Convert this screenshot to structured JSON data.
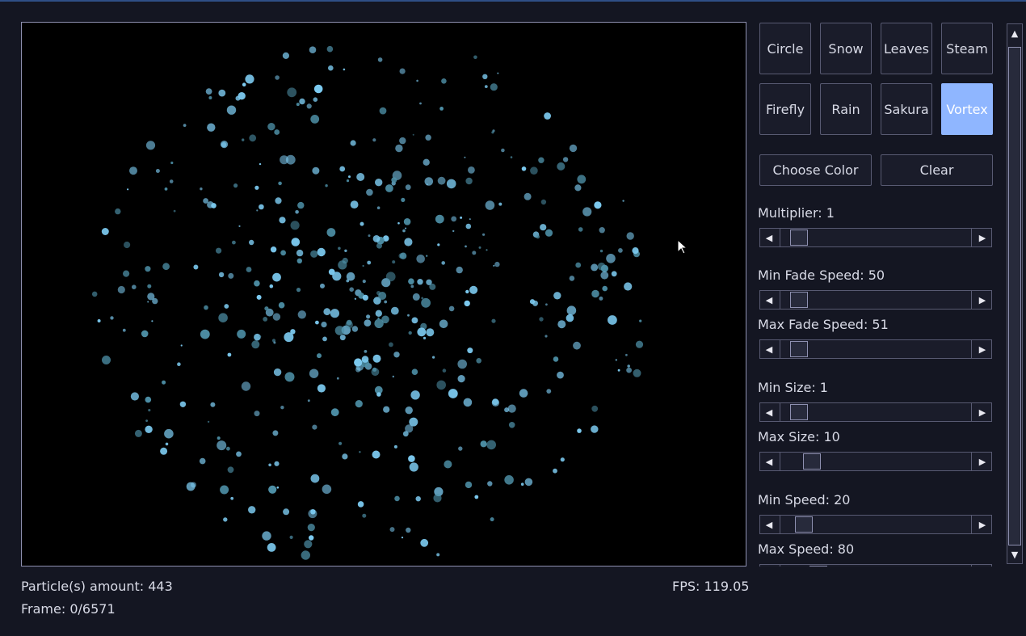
{
  "presets": [
    {
      "label": "Circle",
      "selected": false
    },
    {
      "label": "Snow",
      "selected": false
    },
    {
      "label": "Leaves",
      "selected": false
    },
    {
      "label": "Steam",
      "selected": false
    },
    {
      "label": "Firefly",
      "selected": false
    },
    {
      "label": "Rain",
      "selected": false
    },
    {
      "label": "Sakura",
      "selected": false
    },
    {
      "label": "Vortex",
      "selected": true
    }
  ],
  "actions": {
    "choose_color": "Choose Color",
    "clear": "Clear"
  },
  "sliders": [
    {
      "label": "Multiplier: 1",
      "value": 1
    },
    {
      "label": "Min Fade Speed: 50",
      "value": 50
    },
    {
      "label": "Max Fade Speed: 51",
      "value": 51
    },
    {
      "label": "Min Size: 1",
      "value": 1
    },
    {
      "label": "Max Size: 10",
      "value": 10
    },
    {
      "label": "Min Speed: 20",
      "value": 20
    },
    {
      "label": "Max Speed: 80",
      "value": 80
    }
  ],
  "status": {
    "particles": "Particle(s) amount: 443",
    "frame": "Frame: 0/6571",
    "fps": "FPS: 119.05"
  },
  "colors": {
    "particle_bright": "#7ccaf0",
    "particle_dim": "#4d8fa6",
    "selected_button": "#8fb6ff",
    "background": "#141622"
  },
  "icons": {
    "scroll_left": "◀",
    "scroll_right": "▶",
    "scroll_up": "▲",
    "scroll_down": "▼"
  }
}
